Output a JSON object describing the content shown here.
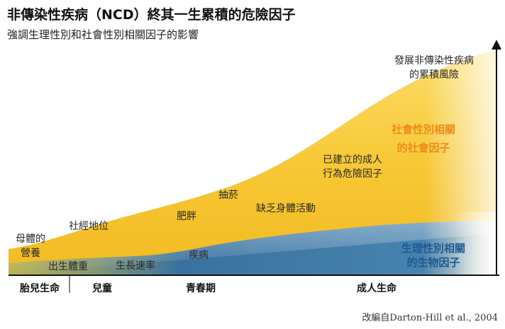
{
  "title": "非傳染性疾病（NCD）終其一生累積的危險因子",
  "subtitle": "強調生理性別和社會性別相關因子的影響",
  "top_right_label": [
    "發展非傳染性疾病",
    "的累積風險"
  ],
  "social_gender_label": [
    "社會性別相關",
    "的社會因子"
  ],
  "bio_gender_label": [
    "生理性別相關",
    "的生物因子"
  ],
  "factors": {
    "maternal": [
      "母體的",
      "營養"
    ],
    "birth_weight": "出生體重",
    "ses": "社經地位",
    "growth_rate": "生長速率",
    "obesity": "肥胖",
    "disease": "疾病",
    "smoking": "抽菸",
    "inactivity": "缺乏身體活動",
    "adult_behaviour": [
      "已建立的成人",
      "行為危險因子"
    ]
  },
  "stages": {
    "fetal": "胎兒生命",
    "childhood": "兒童",
    "adolescence": "青春期",
    "adult": "成人生命"
  },
  "source": "改編自Darton-Hill et al., 2004",
  "colors": {
    "yellow": "#f7c836",
    "blue": "#2f6ea6",
    "orange_text": "#f08a1c",
    "blue_text": "#1d5a93"
  }
}
